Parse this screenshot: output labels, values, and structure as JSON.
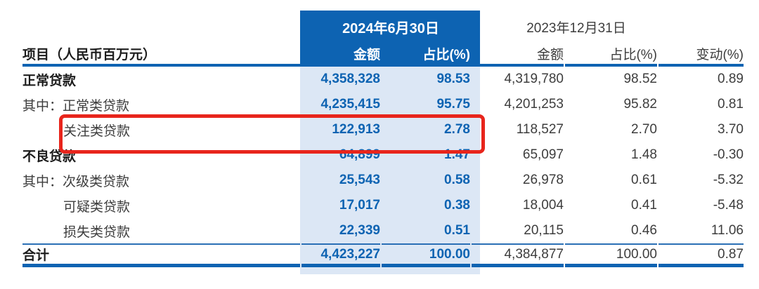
{
  "table": {
    "items_header": "项目（人民币百万元）",
    "current_period": {
      "date": "2024年6月30日",
      "col_amount": "金额",
      "col_pct": "占比(%)"
    },
    "prior_period": {
      "date": "2023年12月31日",
      "col_amount": "金额",
      "col_pct": "占比(%)",
      "col_change": "变动(%)"
    },
    "rows": [
      {
        "label": "正常贷款",
        "cur_amount": "4,358,328",
        "cur_pct": "98.53",
        "prev_amount": "4,319,780",
        "prev_pct": "98.52",
        "change": "0.89"
      },
      {
        "label": "其中：正常类贷款",
        "cur_amount": "4,235,415",
        "cur_pct": "95.75",
        "prev_amount": "4,201,253",
        "prev_pct": "95.82",
        "change": "0.81"
      },
      {
        "label": "关注类贷款",
        "cur_amount": "122,913",
        "cur_pct": "2.78",
        "prev_amount": "118,527",
        "prev_pct": "2.70",
        "change": "3.70"
      },
      {
        "label": "不良贷款",
        "cur_amount": "64,899",
        "cur_pct": "1.47",
        "prev_amount": "65,097",
        "prev_pct": "1.48",
        "change": "-0.30"
      },
      {
        "label": "其中：次级类贷款",
        "cur_amount": "25,543",
        "cur_pct": "0.58",
        "prev_amount": "26,978",
        "prev_pct": "0.61",
        "change": "-5.32"
      },
      {
        "label": "可疑类贷款",
        "cur_amount": "17,017",
        "cur_pct": "0.38",
        "prev_amount": "18,004",
        "prev_pct": "0.41",
        "change": "-5.48"
      },
      {
        "label": "损失类贷款",
        "cur_amount": "22,339",
        "cur_pct": "0.51",
        "prev_amount": "20,115",
        "prev_pct": "0.46",
        "change": "11.06"
      }
    ],
    "total_row": {
      "label": "合计",
      "cur_amount": "4,423,227",
      "cur_pct": "100.00",
      "prev_amount": "4,384,877",
      "prev_pct": "100.00",
      "change": "0.87"
    },
    "highlighted_row_label": "关注类贷款"
  },
  "colors": {
    "header_blue": "#0d63b2",
    "band_light_blue": "#dce7f5",
    "current_value_blue": "#0d63b2",
    "highlight_red": "#e8251c",
    "body_text": "#3d3d3d",
    "bold_text": "#1c1c1c"
  }
}
